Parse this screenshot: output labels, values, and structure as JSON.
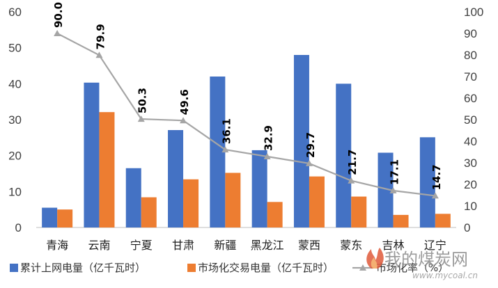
{
  "chart_data": {
    "type": "bar",
    "categories": [
      "青海",
      "云南",
      "宁夏",
      "甘肃",
      "新疆",
      "黑龙江",
      "蒙西",
      "蒙东",
      "吉林",
      "辽宁"
    ],
    "series": [
      {
        "name": "累计上网电量（亿千瓦时）",
        "type": "bar",
        "axis": "left",
        "color": "#4472C4",
        "values": [
          5.5,
          40.3,
          16.5,
          27.1,
          42.0,
          21.5,
          48.0,
          40.0,
          20.8,
          25.1
        ]
      },
      {
        "name": "市场化交易电量（亿千瓦时）",
        "type": "bar",
        "axis": "left",
        "color": "#ED7D31",
        "values": [
          5.0,
          32.1,
          8.4,
          13.4,
          15.2,
          7.1,
          14.2,
          8.6,
          3.5,
          3.8
        ]
      },
      {
        "name": "市场化率（%）",
        "type": "line",
        "axis": "right",
        "color": "#A5A5A5",
        "values": [
          90.0,
          79.9,
          50.3,
          49.6,
          36.1,
          32.9,
          29.7,
          21.7,
          17.1,
          14.7
        ],
        "labels": [
          "90.0",
          "79.9",
          "50.3",
          "49.6",
          "36.1",
          "32.9",
          "29.7",
          "21.7",
          "17.1",
          "14.7"
        ]
      }
    ],
    "y_left": {
      "min": 0,
      "max": 60,
      "ticks": [
        "0",
        "10",
        "20",
        "30",
        "40",
        "50",
        "60"
      ]
    },
    "y_right": {
      "min": 0,
      "max": 100,
      "ticks": [
        "0",
        "10",
        "20",
        "30",
        "40",
        "50",
        "60",
        "70",
        "80",
        "90",
        "100"
      ]
    },
    "legend_position": "bottom",
    "grid": false
  },
  "watermark": {
    "text": "我的煤炭网",
    "url": "www.mycoal.cn"
  }
}
